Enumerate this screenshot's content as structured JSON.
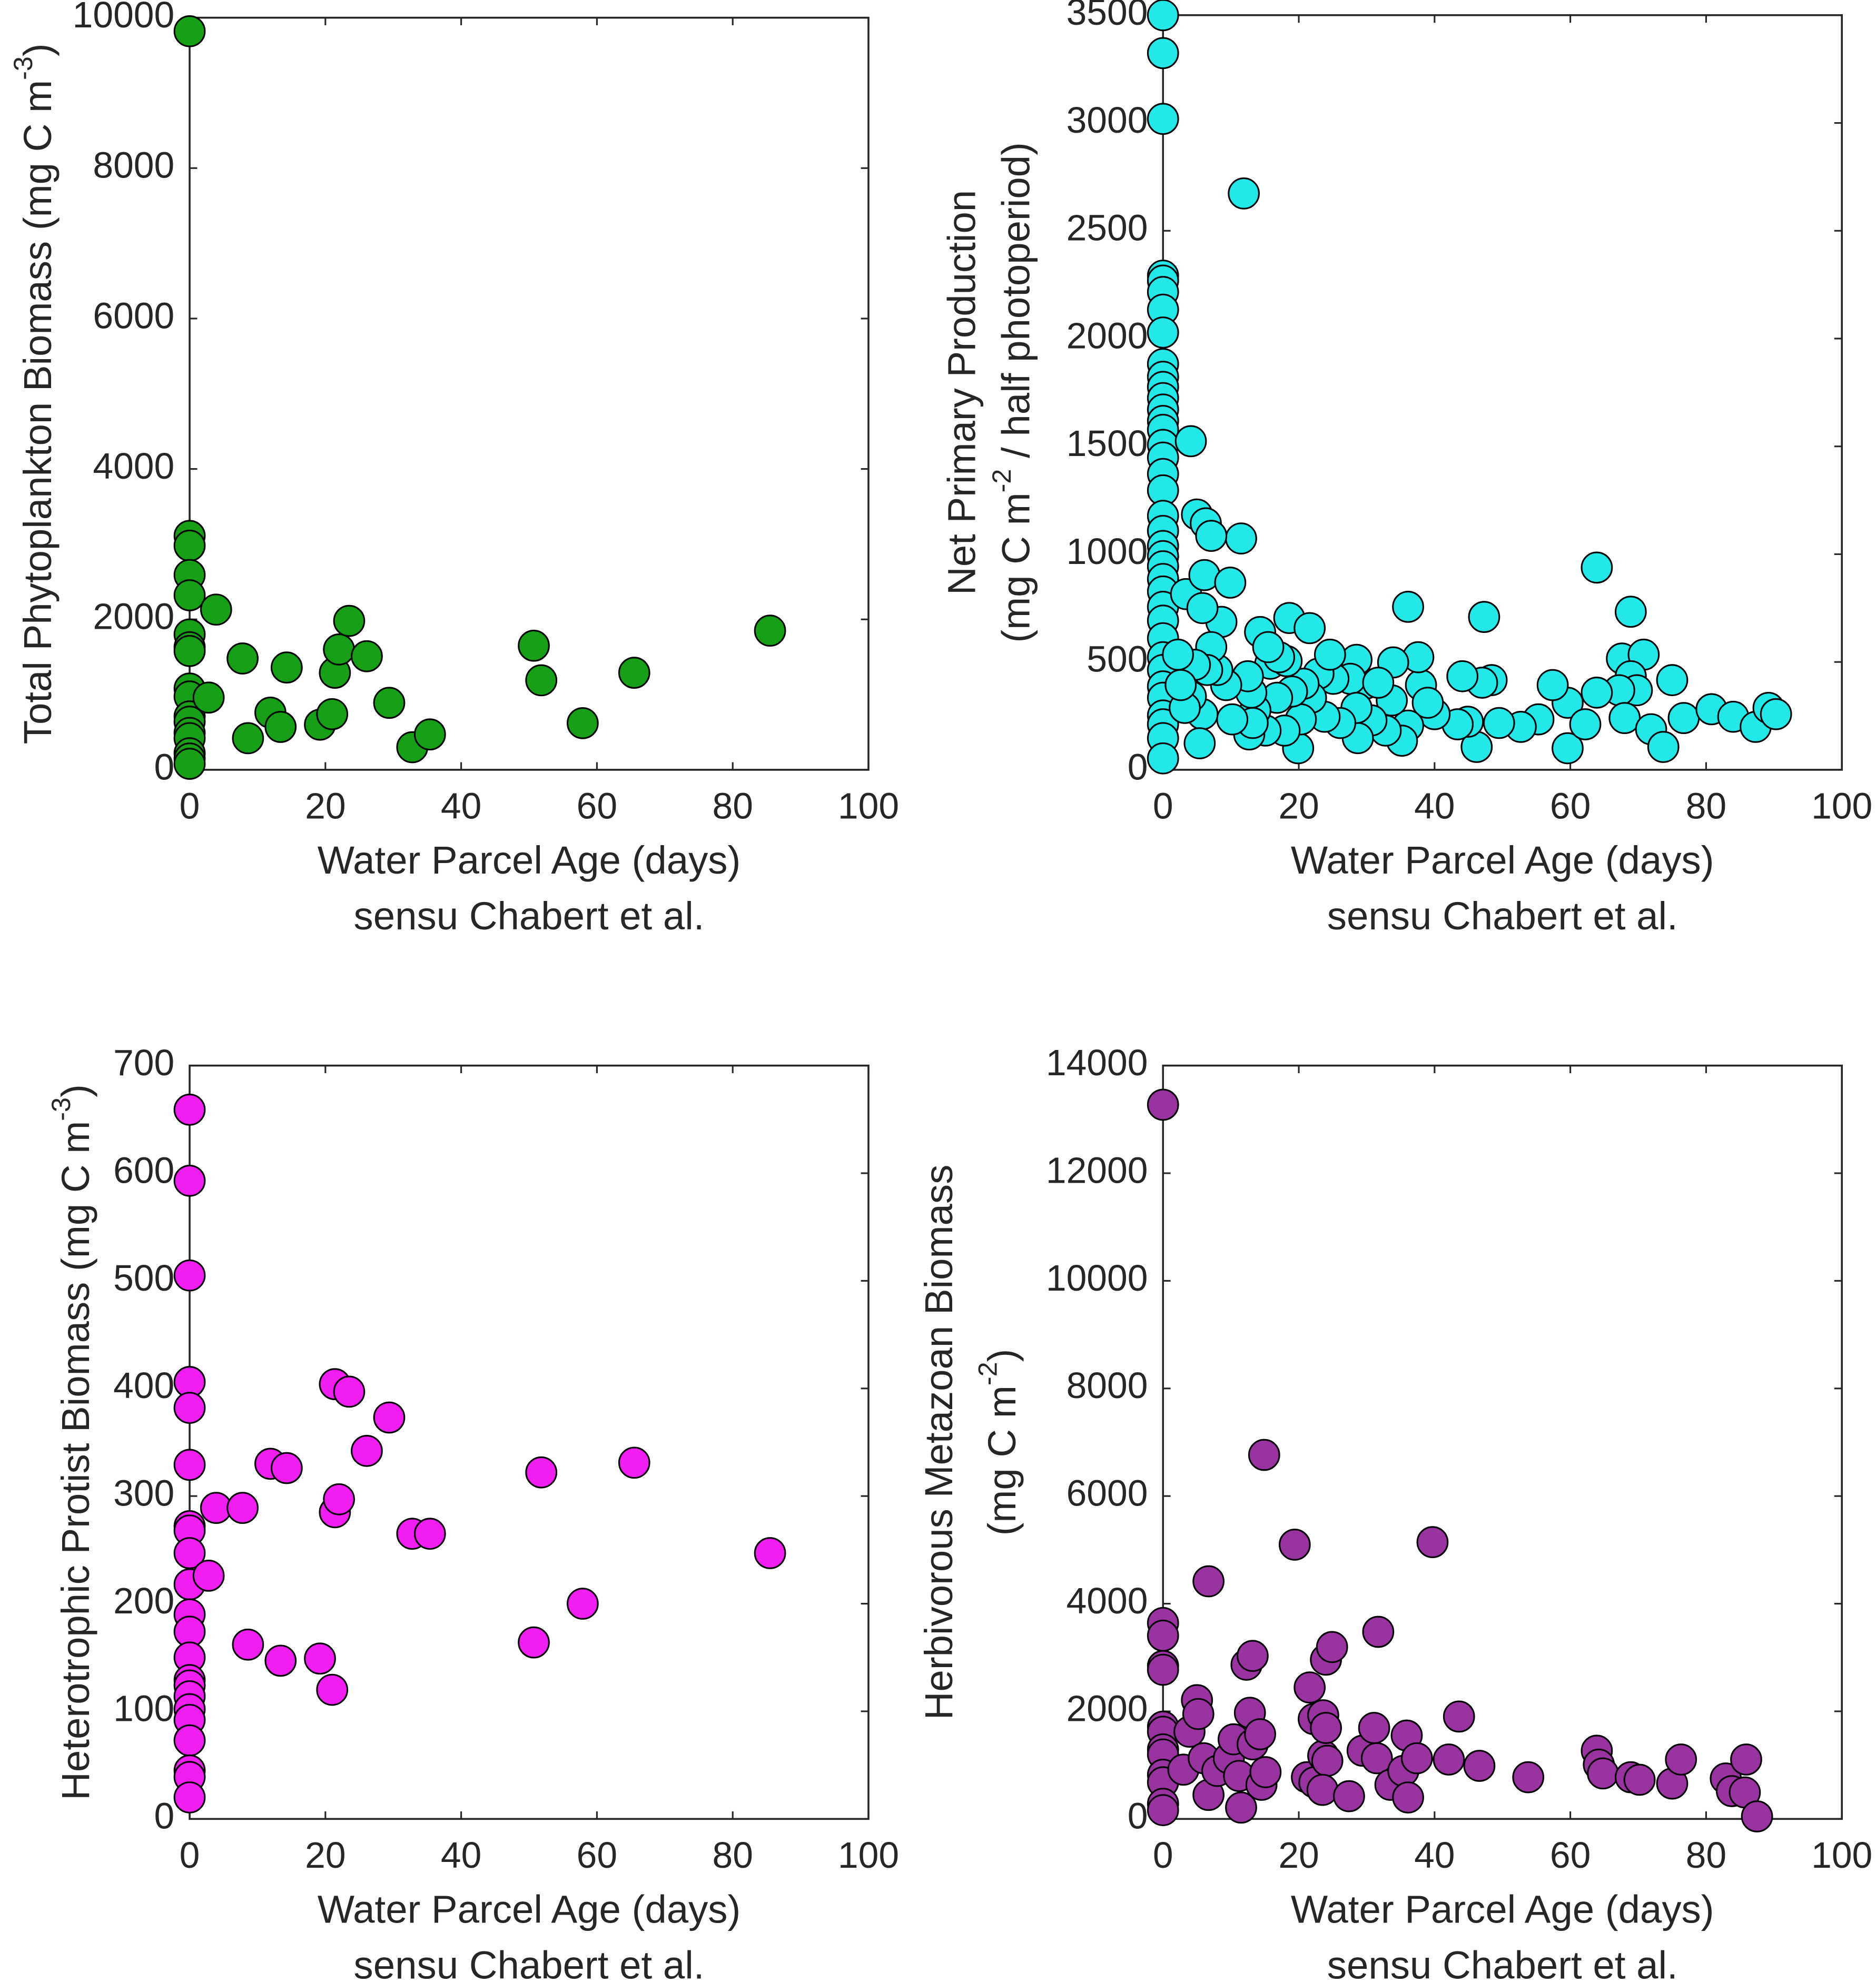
{
  "chart_data": [
    {
      "type": "scatter",
      "color": "#17a017",
      "xlabel": [
        "Water Parcel Age (days)",
        "sensu Chabert et al."
      ],
      "ylabel": [
        [
          "Total Phytoplankton Biomass (mg C m",
          "-3",
          ")"
        ]
      ],
      "xlim": [
        0,
        100
      ],
      "ylim": [
        0,
        10000
      ],
      "xticks": [
        0,
        20,
        40,
        60,
        80,
        100
      ],
      "yticks": [
        0,
        2000,
        4000,
        6000,
        8000,
        10000
      ],
      "x": [
        0,
        0,
        0,
        0,
        0,
        0,
        0,
        0,
        0,
        0,
        0,
        0,
        0,
        0,
        0,
        0,
        0,
        3.9,
        2.8,
        7.8,
        8.6,
        11.9,
        13.4,
        14.3,
        19.2,
        21,
        21.4,
        22,
        23.5,
        26.1,
        29.4,
        32.8,
        35.4,
        50.7,
        51.8,
        57.9,
        65.5,
        85.5
      ],
      "y": [
        9820,
        3110,
        2980,
        2590,
        2320,
        1800,
        1630,
        1580,
        1080,
        975,
        710,
        640,
        490,
        420,
        220,
        150,
        80,
        2130,
        960,
        1480,
        420,
        760,
        570,
        1360,
        600,
        740,
        1290,
        1600,
        1980,
        1510,
        890,
        300,
        470,
        1650,
        1190,
        620,
        1290,
        1850
      ]
    },
    {
      "type": "scatter",
      "color": "#22e8e8",
      "xlabel": [
        "Water Parcel Age (days)",
        "sensu Chabert et al."
      ],
      "ylabel": [
        [
          "Net Primary Production"
        ],
        [
          "(mg C m",
          "-2",
          " / half photoperiod)"
        ]
      ],
      "xlim": [
        0,
        100
      ],
      "ylim": [
        0,
        3500
      ],
      "xticks": [
        0,
        20,
        40,
        60,
        80,
        100
      ],
      "yticks": [
        0,
        500,
        1000,
        1500,
        2000,
        2500,
        3000,
        3500
      ],
      "x": [
        0,
        0,
        0,
        0,
        0,
        0,
        0,
        0,
        0,
        0,
        0,
        0,
        0,
        0,
        0,
        0,
        0,
        0,
        0,
        0,
        0,
        0,
        0,
        0,
        0,
        0,
        0,
        0,
        0,
        0,
        0,
        0,
        0,
        0,
        0,
        0,
        0,
        11.9,
        4.1,
        5,
        6.3,
        11.5,
        7.1,
        3.4,
        6.1,
        9.9,
        8.6,
        5.8,
        18.6,
        21.6,
        36.1,
        47.3,
        63.9,
        68.9,
        67.6,
        70.8,
        68.9,
        69.8,
        67.2,
        68,
        71.9,
        75,
        76.7,
        73.7,
        63.9,
        59.6,
        59.6,
        62.2,
        57.4,
        55.3,
        52.7,
        49.5,
        48.4,
        47,
        46.2,
        44.9,
        44.1,
        43.4,
        40,
        38,
        39,
        37.6,
        36.1,
        35.2,
        33.7,
        33.9,
        32.8,
        30.7,
        29.8,
        28.5,
        27.6,
        28.7,
        28.5,
        26.1,
        25.1,
        23.8,
        22.9,
        21.8,
        20.7,
        19.9,
        20.3,
        19,
        17.9,
        16.8,
        15.8,
        15.1,
        14.3,
        13.6,
        13,
        12.7,
        13.2,
        12.5,
        10.2,
        9.3,
        8,
        7.1,
        6.5,
        5.8,
        5.4,
        4.7,
        4.1,
        3.2,
        2.2,
        2.6,
        18.2,
        31.7,
        17.1,
        15.5,
        24.6,
        80.8,
        84,
        87.3,
        89.2,
        90.3
      ],
      "y": [
        3500,
        3324,
        3019,
        2292,
        2269,
        2216,
        2134,
        2028,
        1882,
        1823,
        1776,
        1724,
        1671,
        1618,
        1577,
        1507,
        1448,
        1372,
        1296,
        1178,
        1108,
        1038,
        991,
        944,
        885,
        827,
        756,
        692,
        610,
        522,
        463,
        387,
        334,
        252,
        211,
        147,
        53,
        2673,
        1524,
        1184,
        1143,
        1073,
        1085,
        815,
        903,
        868,
        686,
        750,
        704,
        657,
        756,
        709,
        938,
        733,
        516,
        534,
        434,
        369,
        369,
        240,
        188,
        416,
        240,
        106,
        358,
        311,
        100,
        211,
        393,
        234,
        199,
        217,
        416,
        404,
        106,
        223,
        434,
        211,
        258,
        393,
        311,
        522,
        205,
        135,
        322,
        498,
        182,
        229,
        399,
        510,
        422,
        147,
        287,
        217,
        422,
        246,
        446,
        334,
        399,
        100,
        234,
        363,
        182,
        334,
        492,
        182,
        639,
        276,
        358,
        164,
        217,
        434,
        234,
        393,
        463,
        569,
        463,
        258,
        123,
        487,
        340,
        287,
        534,
        393,
        504,
        404,
        522,
        569,
        534,
        281,
        246,
        199,
        287,
        258
      ]
    },
    {
      "type": "scatter",
      "color": "#f01ef0",
      "xlabel": [
        "Water Parcel Age (days)",
        "sensu Chabert et al."
      ],
      "ylabel": [
        [
          "Heterotrophic Protist Biomass (mg C m",
          "-3",
          ")"
        ]
      ],
      "xlim": [
        0,
        100
      ],
      "ylim": [
        0,
        700
      ],
      "xticks": [
        0,
        20,
        40,
        60,
        80,
        100
      ],
      "yticks": [
        0,
        100,
        200,
        300,
        400,
        500,
        600,
        700
      ],
      "x": [
        0,
        0,
        0,
        0,
        0,
        0,
        0,
        0,
        0,
        0,
        0,
        0,
        0,
        0,
        0,
        0,
        0,
        0,
        0,
        0,
        0,
        0,
        3.9,
        2.8,
        7.8,
        8.6,
        11.9,
        13.4,
        14.3,
        19.2,
        21,
        21.4,
        21.4,
        22,
        23.5,
        26.1,
        29.4,
        32.8,
        35.4,
        50.7,
        51.8,
        57.9,
        65.5,
        85.5
      ],
      "y": [
        659,
        593,
        505,
        406,
        382,
        329,
        272,
        268,
        247,
        218,
        190,
        174,
        150,
        129,
        124,
        114,
        102,
        92,
        73,
        45,
        39,
        20,
        289,
        226,
        289,
        162,
        330,
        147,
        326,
        149,
        120,
        404,
        285,
        297,
        397,
        342,
        373,
        265,
        265,
        164,
        322,
        200,
        331,
        247
      ]
    },
    {
      "type": "scatter",
      "color": "#9933a0",
      "xlabel": [
        "Water Parcel Age (days)",
        "sensu Chabert et al."
      ],
      "ylabel": [
        [
          "Herbivorous Metazoan Biomass"
        ],
        [
          "(mg C m",
          "-2",
          ")"
        ]
      ],
      "xlim": [
        0,
        100
      ],
      "ylim": [
        0,
        14000
      ],
      "xticks": [
        0,
        20,
        40,
        60,
        80,
        100
      ],
      "yticks": [
        0,
        2000,
        4000,
        6000,
        8000,
        10000,
        12000,
        14000
      ],
      "x": [
        0,
        0,
        0,
        0,
        0,
        0,
        0,
        0,
        0,
        0,
        0,
        0,
        0,
        6.7,
        3.9,
        3,
        5,
        5.2,
        6,
        6.7,
        8,
        9.7,
        10.4,
        11.2,
        11.5,
        12.3,
        13.2,
        12.8,
        13.2,
        14.3,
        14.5,
        14.9,
        15.1,
        19.4,
        21.6,
        22.2,
        21.2,
        22.3,
        23.6,
        23.6,
        24,
        24.9,
        24,
        24.2,
        23.5,
        27.4,
        29.4,
        31.1,
        31.5,
        31.7,
        33.5,
        35.4,
        35.9,
        36.1,
        37.4,
        39.7,
        42.1,
        43.6,
        46.6,
        53.8,
        63.9,
        64.2,
        64.8,
        68.9,
        70.2,
        75,
        76.3,
        82.9,
        83.8,
        85.9,
        85.7,
        87.5
      ],
      "y": [
        13272,
        3641,
        3406,
        2842,
        2772,
        1715,
        1621,
        1292,
        1198,
        822,
        681,
        282,
        164,
        4416,
        1621,
        916,
        2208,
        1950,
        1128,
        446,
        893,
        1128,
        1480,
        799,
        211,
        2866,
        3030,
        1973,
        1386,
        1574,
        634,
        6765,
        869,
        5097,
        2443,
        1856,
        775,
        681,
        1926,
        1175,
        2960,
        3195,
        1691,
        1081,
        540,
        423,
        1268,
        1691,
        1128,
        3477,
        634,
        893,
        1550,
        399,
        1128,
        5144,
        1104,
        1903,
        987,
        775,
        1268,
        1010,
        846,
        775,
        728,
        658,
        1104,
        752,
        517,
        1104,
        493,
        47
      ]
    }
  ]
}
